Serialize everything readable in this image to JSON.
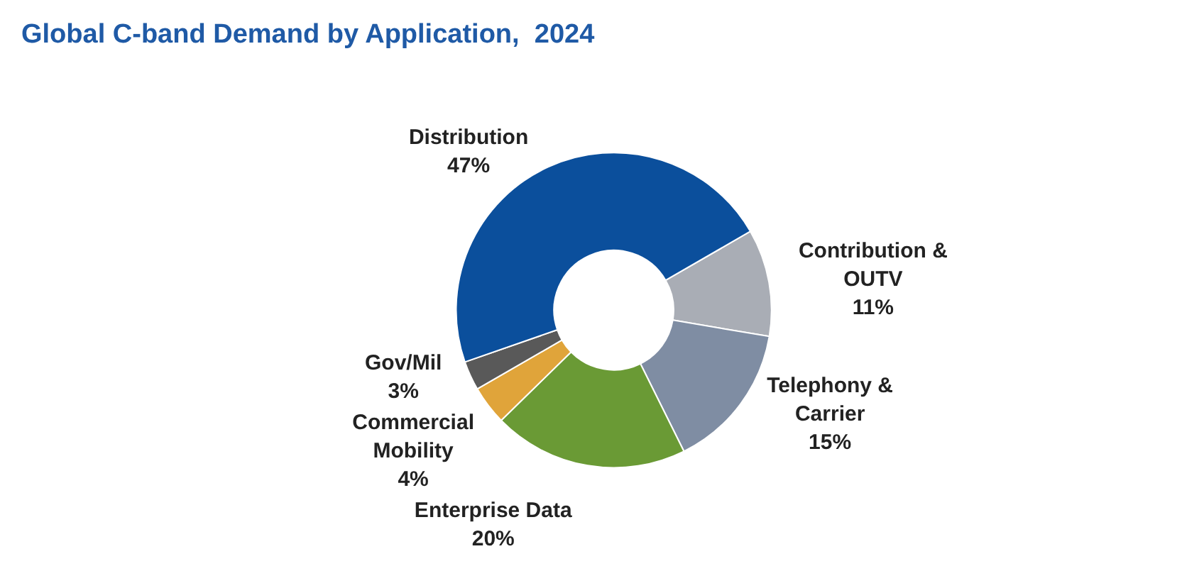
{
  "chart_data": {
    "type": "donut",
    "title": "Global C-band Demand by Application,  2024",
    "categories": [
      "Contribution &\nOUTV",
      "Telephony &\nCarrier",
      "Enterprise Data",
      "Commercial\nMobility",
      "Gov/Mil",
      "Distribution"
    ],
    "values": [
      11,
      15,
      20,
      4,
      3,
      47
    ],
    "colors": [
      "#a9adb5",
      "#7f8da3",
      "#6a9a35",
      "#e0a43a",
      "#595959",
      "#0b4f9c"
    ],
    "value_labels": [
      "11%",
      "15%",
      "20%",
      "4%",
      "3%",
      "47%"
    ],
    "legend": false
  }
}
